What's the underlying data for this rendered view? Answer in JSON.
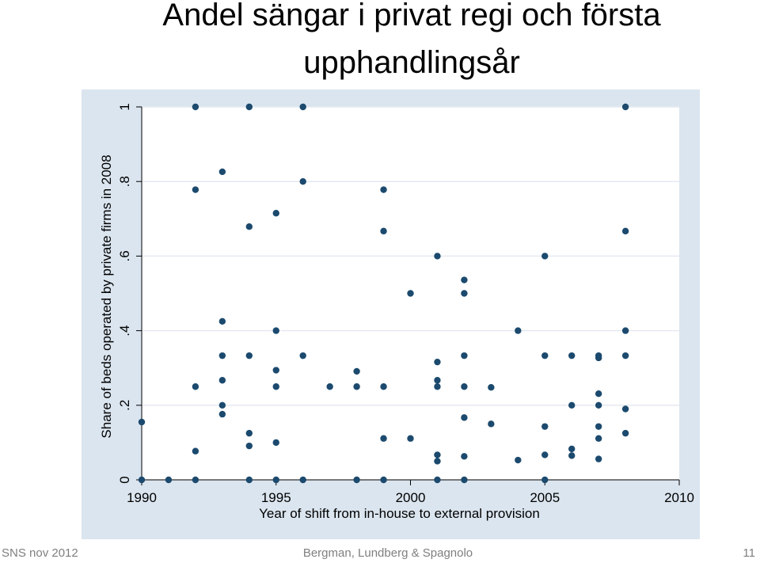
{
  "slide": {
    "title_line1": "Andel sängar i privat regi och första",
    "title_line2": "upphandlingsår",
    "footer_left": "SNS nov 2012",
    "footer_center": "Bergman, Lundberg & Spagnolo",
    "page_number": "11"
  },
  "colors": {
    "plot_background": "#dbe5ef",
    "plot_area": "#ffffff",
    "marker": "#1c4a6e",
    "grid": "#e4eaf0",
    "axis": "#000000"
  },
  "chart_data": {
    "type": "scatter",
    "xlabel": "Year of shift from in-house to external provision",
    "ylabel": "Share of beds operated by private firms in 2008",
    "xlim": [
      1990,
      2010
    ],
    "ylim": [
      0,
      1
    ],
    "x_ticks": [
      1990,
      1995,
      2000,
      2005,
      2010
    ],
    "y_ticks": [
      0,
      0.2,
      0.4,
      0.6,
      0.8,
      1
    ],
    "x_tick_labels": [
      "1990",
      "1995",
      "2000",
      "2005",
      "2010"
    ],
    "y_tick_labels": [
      "0",
      ".2",
      ".4",
      ".6",
      ".8",
      "1"
    ],
    "grid": true,
    "points": [
      {
        "x": 1990,
        "y": 0.155
      },
      {
        "x": 1990,
        "y": 0
      },
      {
        "x": 1991,
        "y": 0
      },
      {
        "x": 1992,
        "y": 1
      },
      {
        "x": 1992,
        "y": 0.778
      },
      {
        "x": 1992,
        "y": 0.25
      },
      {
        "x": 1992,
        "y": 0.077
      },
      {
        "x": 1992,
        "y": 0
      },
      {
        "x": 1993,
        "y": 0.826
      },
      {
        "x": 1993,
        "y": 0.425
      },
      {
        "x": 1993,
        "y": 0.333
      },
      {
        "x": 1993,
        "y": 0.267
      },
      {
        "x": 1993,
        "y": 0.2
      },
      {
        "x": 1993,
        "y": 0.176
      },
      {
        "x": 1994,
        "y": 1
      },
      {
        "x": 1994,
        "y": 0.679
      },
      {
        "x": 1994,
        "y": 0.333
      },
      {
        "x": 1994,
        "y": 0.125
      },
      {
        "x": 1994,
        "y": 0.091
      },
      {
        "x": 1994,
        "y": 0
      },
      {
        "x": 1995,
        "y": 0.715
      },
      {
        "x": 1995,
        "y": 0.4
      },
      {
        "x": 1995,
        "y": 0.294
      },
      {
        "x": 1995,
        "y": 0.25
      },
      {
        "x": 1995,
        "y": 0.1
      },
      {
        "x": 1995,
        "y": 0
      },
      {
        "x": 1996,
        "y": 1
      },
      {
        "x": 1996,
        "y": 0.8
      },
      {
        "x": 1996,
        "y": 0.333
      },
      {
        "x": 1996,
        "y": 0
      },
      {
        "x": 1997,
        "y": 0.25
      },
      {
        "x": 1998,
        "y": 0.291
      },
      {
        "x": 1998,
        "y": 0.25
      },
      {
        "x": 1998,
        "y": 0
      },
      {
        "x": 1999,
        "y": 0.778
      },
      {
        "x": 1999,
        "y": 0.667
      },
      {
        "x": 1999,
        "y": 0.25
      },
      {
        "x": 1999,
        "y": 0.111
      },
      {
        "x": 1999,
        "y": 0
      },
      {
        "x": 2000,
        "y": 0.5
      },
      {
        "x": 2000,
        "y": 0.111
      },
      {
        "x": 2001,
        "y": 0.6
      },
      {
        "x": 2001,
        "y": 0.316
      },
      {
        "x": 2001,
        "y": 0.267
      },
      {
        "x": 2001,
        "y": 0.25
      },
      {
        "x": 2001,
        "y": 0.067
      },
      {
        "x": 2001,
        "y": 0.05
      },
      {
        "x": 2001,
        "y": 0
      },
      {
        "x": 2002,
        "y": 0.536
      },
      {
        "x": 2002,
        "y": 0.5
      },
      {
        "x": 2002,
        "y": 0.333
      },
      {
        "x": 2002,
        "y": 0.25
      },
      {
        "x": 2002,
        "y": 0.167
      },
      {
        "x": 2002,
        "y": 0.063
      },
      {
        "x": 2002,
        "y": 0
      },
      {
        "x": 2003,
        "y": 0.248
      },
      {
        "x": 2003,
        "y": 0.15
      },
      {
        "x": 2004,
        "y": 0.4
      },
      {
        "x": 2004,
        "y": 0.053
      },
      {
        "x": 2005,
        "y": 0.6
      },
      {
        "x": 2005,
        "y": 0.333
      },
      {
        "x": 2005,
        "y": 0.143
      },
      {
        "x": 2005,
        "y": 0.067
      },
      {
        "x": 2005,
        "y": 0
      },
      {
        "x": 2006,
        "y": 0.333
      },
      {
        "x": 2006,
        "y": 0.2
      },
      {
        "x": 2006,
        "y": 0.083
      },
      {
        "x": 2006,
        "y": 0.065
      },
      {
        "x": 2007,
        "y": 0.333
      },
      {
        "x": 2007,
        "y": 0.327
      },
      {
        "x": 2007,
        "y": 0.231
      },
      {
        "x": 2007,
        "y": 0.2
      },
      {
        "x": 2007,
        "y": 0.143
      },
      {
        "x": 2007,
        "y": 0.111
      },
      {
        "x": 2007,
        "y": 0.056
      },
      {
        "x": 2008,
        "y": 1
      },
      {
        "x": 2008,
        "y": 0.667
      },
      {
        "x": 2008,
        "y": 0.4
      },
      {
        "x": 2008,
        "y": 0.333
      },
      {
        "x": 2008,
        "y": 0.19
      },
      {
        "x": 2008,
        "y": 0.125
      }
    ]
  }
}
